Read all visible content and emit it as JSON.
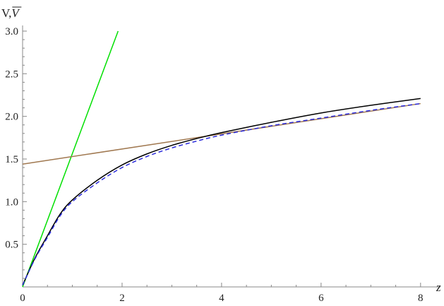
{
  "chart_data": {
    "type": "line",
    "title": "",
    "xlabel": "z",
    "ylabel": "V,",
    "ylabel_overbar": "V",
    "xlim": [
      0,
      8.4
    ],
    "ylim": [
      0,
      3.0
    ],
    "x_ticks": [
      {
        "value": 0,
        "label": "0"
      },
      {
        "value": 2,
        "label": "2"
      },
      {
        "value": 4,
        "label": "4"
      },
      {
        "value": 6,
        "label": "6"
      },
      {
        "value": 8,
        "label": "8"
      }
    ],
    "y_ticks": [
      {
        "value": 0.5,
        "label": "0.5"
      },
      {
        "value": 1.0,
        "label": "1.0"
      },
      {
        "value": 1.5,
        "label": "1.5"
      },
      {
        "value": 2.0,
        "label": "2.0"
      },
      {
        "value": 2.5,
        "label": "2.5"
      },
      {
        "value": 3.0,
        "label": "3.0"
      }
    ],
    "grid": false,
    "legend": "none",
    "series": [
      {
        "color": "#00e000",
        "style": "solid",
        "x": [
          0,
          1.92
        ],
        "y": [
          0,
          3.0
        ]
      },
      {
        "color": "#a07850",
        "style": "solid",
        "x": [
          0,
          8
        ],
        "y": [
          1.44,
          2.15
        ]
      },
      {
        "color": "#000000",
        "style": "solid",
        "x": [
          0,
          0.25,
          0.5,
          0.75,
          1.0,
          1.5,
          2.0,
          2.5,
          3.0,
          3.5,
          4.0,
          5.0,
          6.0,
          7.0,
          8.0
        ],
        "y": [
          0.02,
          0.34,
          0.6,
          0.85,
          1.02,
          1.25,
          1.43,
          1.56,
          1.66,
          1.74,
          1.81,
          1.93,
          2.04,
          2.13,
          2.21
        ]
      },
      {
        "color": "#2a2adc",
        "style": "dashed",
        "x": [
          0,
          0.25,
          0.5,
          0.75,
          1.0,
          1.5,
          2.0,
          2.5,
          3.0,
          3.5,
          4.0,
          5.0,
          6.0,
          7.0,
          8.0
        ],
        "y": [
          0.02,
          0.33,
          0.58,
          0.83,
          1.0,
          1.22,
          1.4,
          1.53,
          1.63,
          1.71,
          1.78,
          1.89,
          1.98,
          2.07,
          2.15
        ]
      }
    ]
  }
}
